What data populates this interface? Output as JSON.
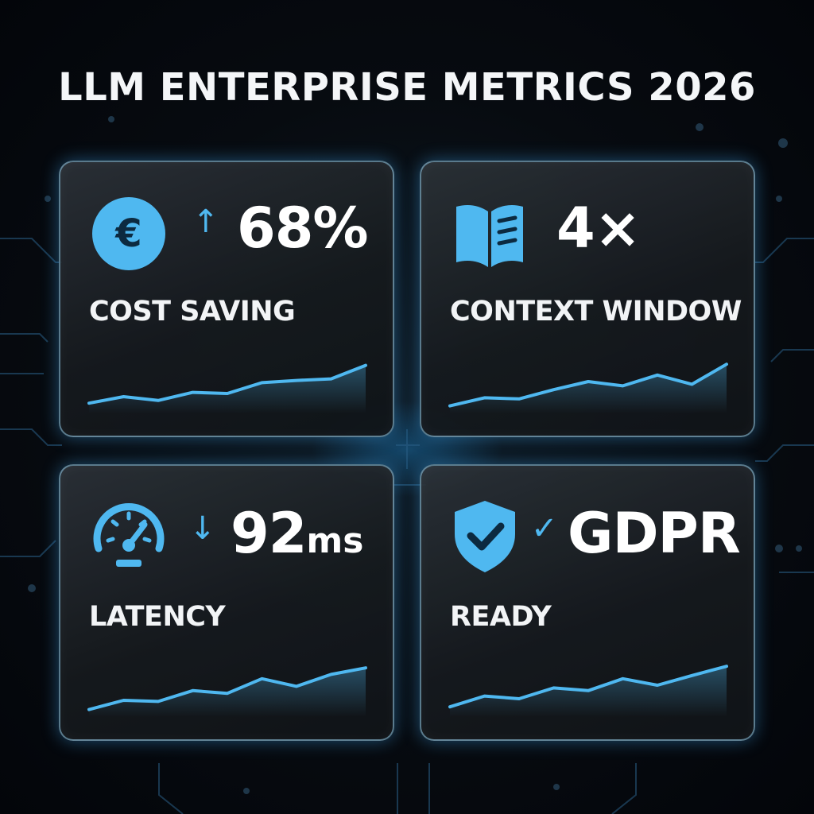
{
  "title": "LLM ENTERPRISE METRICS 2026",
  "colors": {
    "accent": "#4fb8f0",
    "background": "#070b10",
    "card_border": "#96cdeb"
  },
  "cards": [
    {
      "icon": "euro-coin-icon",
      "indicator": "↑",
      "value": "68%",
      "unit": "",
      "label": "COST SAVING",
      "trend": [
        0.1,
        0.22,
        0.15,
        0.3,
        0.28,
        0.48,
        0.52,
        0.55,
        0.8
      ]
    },
    {
      "icon": "open-book-icon",
      "indicator": "",
      "value": "4×",
      "unit": "",
      "label": "CONTEXT WINDOW",
      "trend": [
        0.05,
        0.2,
        0.18,
        0.35,
        0.5,
        0.42,
        0.62,
        0.45,
        0.82
      ]
    },
    {
      "icon": "speedometer-icon",
      "indicator": "↓",
      "value": "92",
      "unit": "ms",
      "label": "LATENCY",
      "trend": [
        0.05,
        0.22,
        0.2,
        0.4,
        0.35,
        0.62,
        0.48,
        0.7,
        0.82
      ]
    },
    {
      "icon": "shield-check-icon",
      "indicator": "✓",
      "value": "GDPR",
      "unit": "",
      "label": "READY",
      "trend": [
        0.1,
        0.3,
        0.25,
        0.45,
        0.4,
        0.62,
        0.5,
        0.68,
        0.85
      ]
    }
  ]
}
